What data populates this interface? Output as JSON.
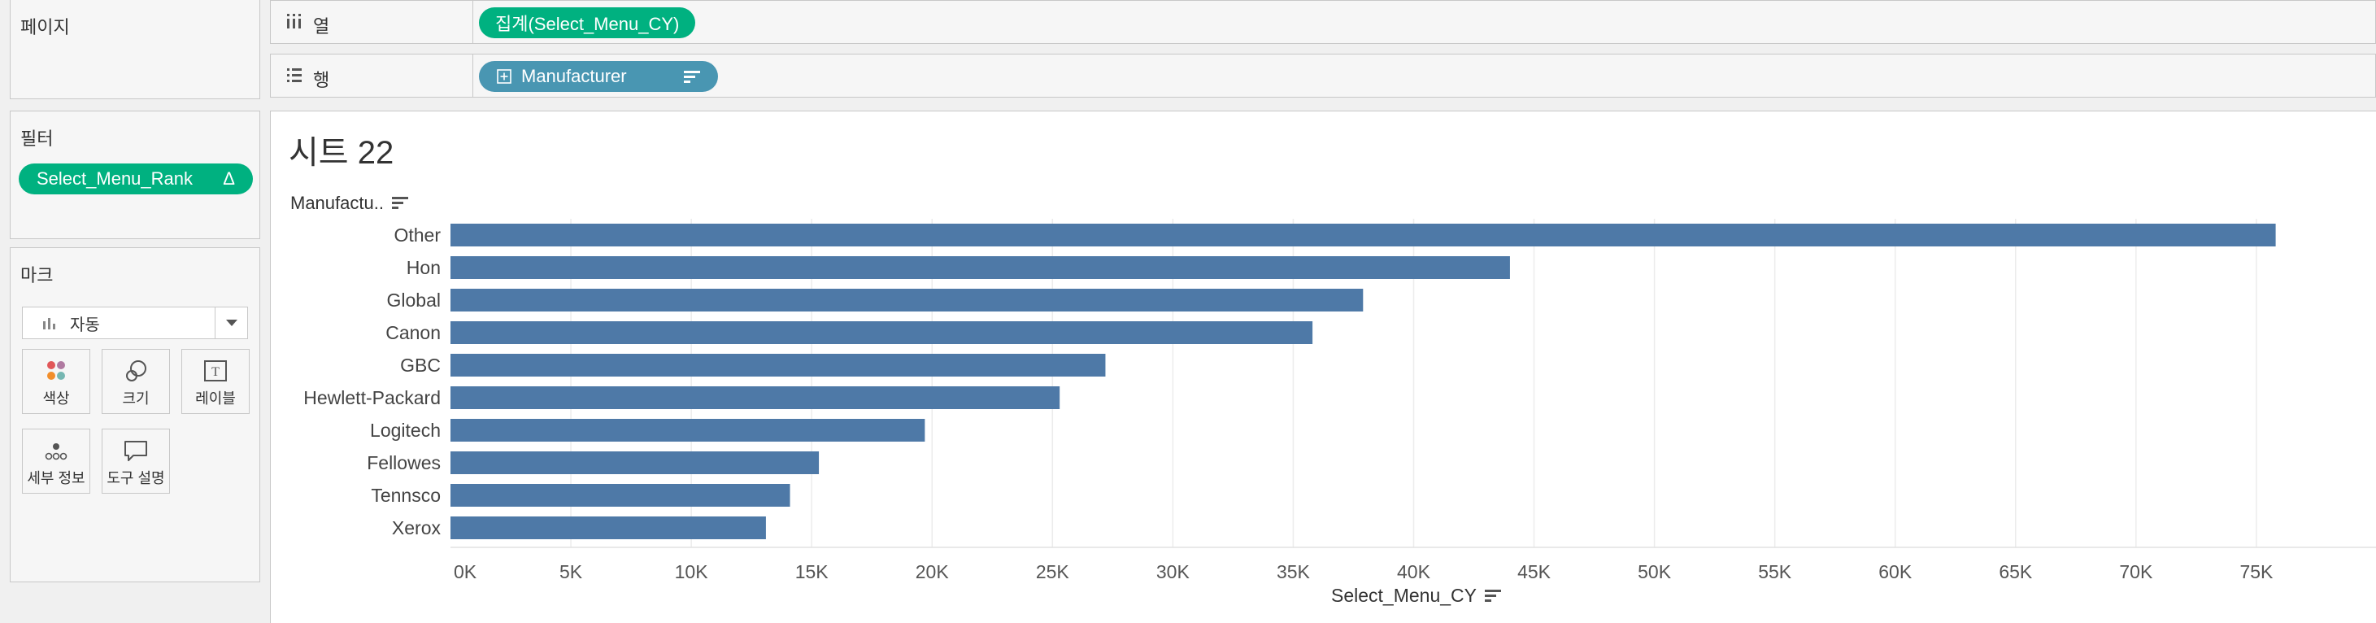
{
  "left_panel": {
    "pages_title": "페이지",
    "filters_title": "필터",
    "filter_pill": "Select_Menu_Rank",
    "filter_pill_suffix": "Δ",
    "marks_title": "마크",
    "mark_type": "자동",
    "mark_buttons": [
      {
        "label": "색상",
        "icon": "color-icon"
      },
      {
        "label": "크기",
        "icon": "size-icon"
      },
      {
        "label": "레이블",
        "icon": "label-icon"
      },
      {
        "label": "세부 정보",
        "icon": "detail-icon"
      },
      {
        "label": "도구 설명",
        "icon": "tooltip-icon"
      }
    ]
  },
  "shelves": {
    "columns_label": "열",
    "columns_pill": "집계(Select_Menu_CY)",
    "rows_label": "행",
    "rows_pill": "Manufacturer"
  },
  "viz": {
    "sheet_title": "시트 22",
    "row_header": "Manufactu..",
    "x_axis_title": "Select_Menu_CY"
  },
  "colors": {
    "bar": "#4e79a7",
    "green_pill": "#00b180",
    "blue_pill": "#4996b2"
  },
  "chart_data": {
    "type": "bar",
    "orientation": "horizontal",
    "categories": [
      "Other",
      "Hon",
      "Global",
      "Canon",
      "GBC",
      "Hewlett-Packard",
      "Logitech",
      "Fellowes",
      "Tennsco",
      "Xerox"
    ],
    "values": [
      75800,
      44000,
      37900,
      35800,
      27200,
      25300,
      19700,
      15300,
      14100,
      13100
    ],
    "xlabel": "Select_Menu_CY",
    "ylabel": "Manufactu..",
    "xlim": [
      0,
      80000
    ],
    "xticks": [
      0,
      5000,
      10000,
      15000,
      20000,
      25000,
      30000,
      35000,
      40000,
      45000,
      50000,
      55000,
      60000,
      65000,
      70000,
      75000
    ],
    "xtick_labels": [
      "0K",
      "5K",
      "10K",
      "15K",
      "20K",
      "25K",
      "30K",
      "35K",
      "40K",
      "45K",
      "50K",
      "55K",
      "60K",
      "65K",
      "70K",
      "75K"
    ],
    "grid": true
  }
}
